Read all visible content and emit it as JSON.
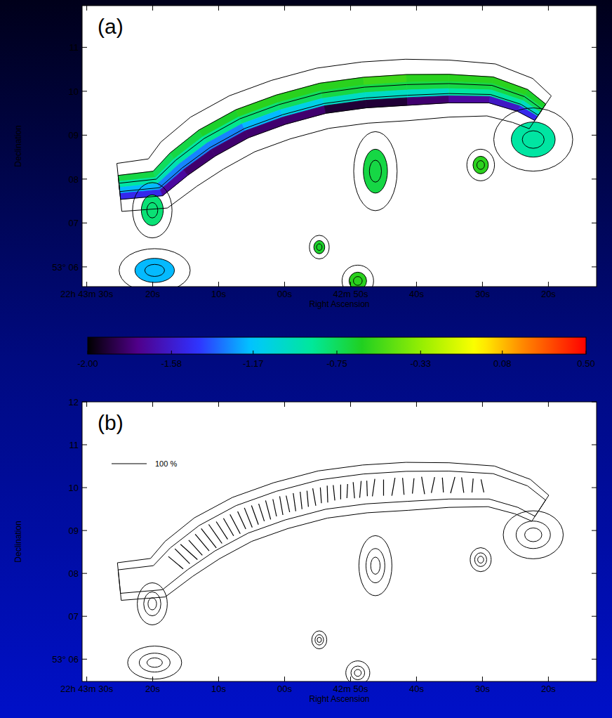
{
  "chart_data": [
    {
      "type": "spectral_index_map",
      "label": "(a)",
      "x_label": "Right Ascension",
      "y_label": "Declination",
      "xlim": [
        90.7,
        12.7
      ],
      "ylim": [
        5.55,
        11.95
      ],
      "xticks": [
        {
          "value": 90,
          "label": "22h 43m 30s"
        },
        {
          "value": 80,
          "label": "20s"
        },
        {
          "value": 70,
          "label": "10s"
        },
        {
          "value": 60,
          "label": "00s"
        },
        {
          "value": 50,
          "label": "42m 50s"
        },
        {
          "value": 40,
          "label": "40s"
        },
        {
          "value": 30,
          "label": "30s"
        },
        {
          "value": 20,
          "label": "20s"
        }
      ],
      "yticks": [
        {
          "value": 6,
          "label": "53° 06"
        },
        {
          "value": 7,
          "label": "07"
        },
        {
          "value": 8,
          "label": "08"
        },
        {
          "value": 9,
          "label": "09"
        },
        10,
        11
      ],
      "relic": {
        "ra": [
          85.06,
          79.21,
          76.02,
          71.76,
          66.44,
          60.59,
          54.21,
          47.83,
          41.44,
          35.06,
          28.68,
          23.9,
          21.23
        ],
        "dec": [
          7.81,
          7.9,
          8.34,
          8.82,
          9.26,
          9.58,
          9.84,
          9.97,
          10.03,
          10.06,
          10.03,
          9.79,
          9.52
        ],
        "width": [
          0.55,
          0.6,
          0.65,
          0.7,
          0.7,
          0.7,
          0.7,
          0.7,
          0.7,
          0.65,
          0.6,
          0.55,
          0.45
        ],
        "spectral_index": [
          [
            -0.7,
            -0.9,
            -1.2,
            -1.5
          ],
          [
            -0.75,
            -0.95,
            -1.3,
            -1.7
          ],
          [
            -0.7,
            -0.9,
            -1.3,
            -1.8
          ],
          [
            -0.65,
            -0.85,
            -1.3,
            -1.8
          ],
          [
            -0.6,
            -0.8,
            -1.2,
            -1.8
          ],
          [
            -0.6,
            -0.75,
            -1.1,
            -1.8
          ],
          [
            -0.6,
            -0.7,
            -1.0,
            -1.9
          ],
          [
            -0.55,
            -0.7,
            -1.0,
            -1.9
          ],
          [
            -0.6,
            -0.7,
            -1.0,
            -1.8
          ],
          [
            -0.6,
            -0.7,
            -0.9,
            -1.7
          ],
          [
            -0.6,
            -0.7,
            -0.9,
            -1.6
          ],
          [
            -0.65,
            -0.75,
            -1.0,
            -1.5
          ],
          [
            -0.7,
            -0.8,
            -1.1,
            -1.5
          ]
        ]
      },
      "sources": {
        "ra": [
          80.06,
          46.23,
          30.27,
          54.74,
          48.9,
          79.7,
          22.3
        ],
        "dec": [
          7.29,
          8.18,
          8.32,
          6.45,
          5.68,
          5.92,
          8.9
        ],
        "size_ew": [
          0.5,
          0.55,
          0.35,
          0.25,
          0.4,
          0.9,
          1.0
        ],
        "size_ns": [
          0.7,
          1.0,
          0.4,
          0.3,
          0.4,
          0.55,
          0.8
        ],
        "spectral_index": [
          -0.8,
          -0.7,
          -0.6,
          -0.65,
          -0.6,
          -1.2,
          -0.9
        ]
      },
      "colorbar": {
        "range": [
          -2,
          0.5
        ],
        "ticks": [
          {
            "value": -2,
            "label": "-2.00"
          },
          {
            "value": -1.58,
            "label": "-1.58"
          },
          {
            "value": -1.17,
            "label": "-1.17"
          },
          {
            "value": -0.75,
            "label": "-0.75"
          },
          {
            "value": -0.33,
            "label": "-0.33"
          },
          {
            "value": 0.08,
            "label": "0.08"
          },
          {
            "value": 0.5,
            "label": "0.50"
          }
        ]
      }
    },
    {
      "type": "polarization_map",
      "label": "(b)",
      "x_label": "Right Ascension",
      "y_label": "Declination",
      "xlim": [
        90.7,
        12.7
      ],
      "ylim": [
        5.48,
        12.0
      ],
      "xticks": [
        {
          "value": 90,
          "label": "22h 43m 30s"
        },
        {
          "value": 80,
          "label": "20s"
        },
        {
          "value": 70,
          "label": "10s"
        },
        {
          "value": 60,
          "label": "00s"
        },
        {
          "value": 50,
          "label": "42m 50s"
        },
        {
          "value": 40,
          "label": "40s"
        },
        {
          "value": 30,
          "label": "30s"
        },
        {
          "value": 20,
          "label": "20s"
        }
      ],
      "yticks": [
        {
          "value": 6,
          "label": "53° 06"
        },
        {
          "value": 7,
          "label": "07"
        },
        {
          "value": 8,
          "label": "08"
        },
        {
          "value": 9,
          "label": "09"
        },
        10,
        11,
        12
      ],
      "contours": {
        "ra": [
          85.06,
          79.21,
          76.02,
          71.76,
          66.44,
          60.59,
          54.21,
          47.83,
          41.44,
          35.06,
          28.68,
          23.9,
          21.23
        ],
        "dec": [
          7.81,
          7.9,
          8.34,
          8.82,
          9.26,
          9.58,
          9.84,
          9.97,
          10.03,
          10.06,
          10.03,
          9.79,
          9.52
        ],
        "width": [
          0.55,
          0.6,
          0.65,
          0.7,
          0.7,
          0.7,
          0.7,
          0.7,
          0.7,
          0.65,
          0.6,
          0.55,
          0.45
        ]
      },
      "sources": {
        "ra": [
          80.06,
          46.23,
          30.27,
          54.74,
          48.9,
          79.7,
          22.3
        ],
        "dec": [
          7.29,
          8.18,
          8.32,
          6.45,
          5.68,
          5.92,
          8.9
        ],
        "size_ew": [
          0.5,
          0.55,
          0.35,
          0.25,
          0.4,
          0.9,
          1.0
        ],
        "size_ns": [
          0.7,
          1.0,
          0.4,
          0.3,
          0.4,
          0.55,
          0.8
        ]
      },
      "vectors": {
        "ra": [
          76.5,
          75.5,
          74.5,
          73.5,
          72.5,
          71.5,
          70.5,
          69.5,
          68.5,
          67.5,
          66.5,
          65.5,
          64.5,
          63.5,
          62.5,
          61.5,
          60.5,
          59.5,
          58.5,
          57.5,
          56.5,
          55.5,
          54.5,
          53.5,
          52.5,
          51.5,
          50.5,
          49.5,
          48.5,
          47.5,
          46.5,
          45.0,
          43.5,
          42.0,
          40.5,
          39.0,
          37.5,
          36.0,
          34.5,
          33.0,
          31.5,
          30.0
        ],
        "dec": [
          8.25,
          8.4,
          8.5,
          8.6,
          8.72,
          8.82,
          8.92,
          9.0,
          9.08,
          9.15,
          9.24,
          9.3,
          9.36,
          9.42,
          9.48,
          9.53,
          9.58,
          9.62,
          9.66,
          9.7,
          9.74,
          9.78,
          9.82,
          9.85,
          9.88,
          9.9,
          9.92,
          9.94,
          9.96,
          9.98,
          10.0,
          10.0,
          10.02,
          10.03,
          10.04,
          10.05,
          10.06,
          10.06,
          10.06,
          10.06,
          10.05,
          10.04
        ],
        "angle": [
          50,
          45,
          48,
          42,
          40,
          38,
          35,
          33,
          30,
          28,
          25,
          22,
          20,
          18,
          15,
          12,
          10,
          12,
          8,
          6,
          5,
          10,
          4,
          2,
          6,
          0,
          -3,
          5,
          -5,
          2,
          -8,
          0,
          -10,
          5,
          -6,
          10,
          -12,
          4,
          -15,
          8,
          -5,
          12
        ],
        "fraction": [
          55,
          60,
          65,
          58,
          62,
          70,
          66,
          60,
          58,
          62,
          55,
          60,
          58,
          52,
          56,
          50,
          54,
          48,
          52,
          50,
          46,
          50,
          45,
          48,
          44,
          42,
          40,
          46,
          48,
          44,
          50,
          46,
          52,
          48,
          44,
          50,
          46,
          42,
          48,
          44,
          40,
          38
        ]
      },
      "scale_bar": {
        "value": 100,
        "label": "100 %"
      }
    }
  ]
}
